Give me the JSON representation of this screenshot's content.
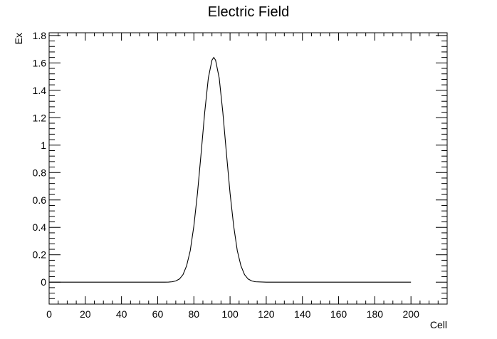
{
  "chart_data": {
    "type": "line",
    "title": "Electric Field",
    "xlabel": "Cell",
    "ylabel": "Ex",
    "xlim": [
      0,
      220
    ],
    "ylim": [
      -0.16,
      1.82
    ],
    "xticks": [
      0,
      20,
      40,
      60,
      80,
      100,
      120,
      140,
      160,
      180,
      200
    ],
    "xtick_labels": [
      "0",
      "20",
      "40",
      "60",
      "80",
      "100",
      "120",
      "140",
      "160",
      "180",
      "200"
    ],
    "yticks": [
      0,
      0.2,
      0.4,
      0.6,
      0.8,
      1.0,
      1.2,
      1.4,
      1.6,
      1.8
    ],
    "ytick_labels": [
      "0",
      "0.2",
      "0.4",
      "0.6",
      "0.8",
      "1",
      "1.2",
      "1.4",
      "1.6",
      "1.8"
    ],
    "grid": false,
    "line_color": "#000000",
    "series": [
      {
        "x": [
          0,
          10,
          20,
          30,
          40,
          50,
          60,
          64,
          66,
          68,
          70,
          72,
          74,
          76,
          78,
          80,
          82,
          84,
          86,
          88,
          90,
          91,
          92,
          94,
          96,
          98,
          100,
          102,
          104,
          106,
          108,
          110,
          112,
          114,
          120,
          140,
          160,
          180,
          200
        ],
        "y": [
          0,
          0,
          0,
          0,
          0,
          0,
          0,
          0,
          0.001,
          0.003,
          0.009,
          0.023,
          0.055,
          0.12,
          0.23,
          0.41,
          0.65,
          0.94,
          1.24,
          1.49,
          1.62,
          1.64,
          1.62,
          1.49,
          1.24,
          0.94,
          0.65,
          0.41,
          0.23,
          0.12,
          0.055,
          0.023,
          0.009,
          0.003,
          0,
          0,
          0,
          0,
          0
        ]
      }
    ]
  }
}
